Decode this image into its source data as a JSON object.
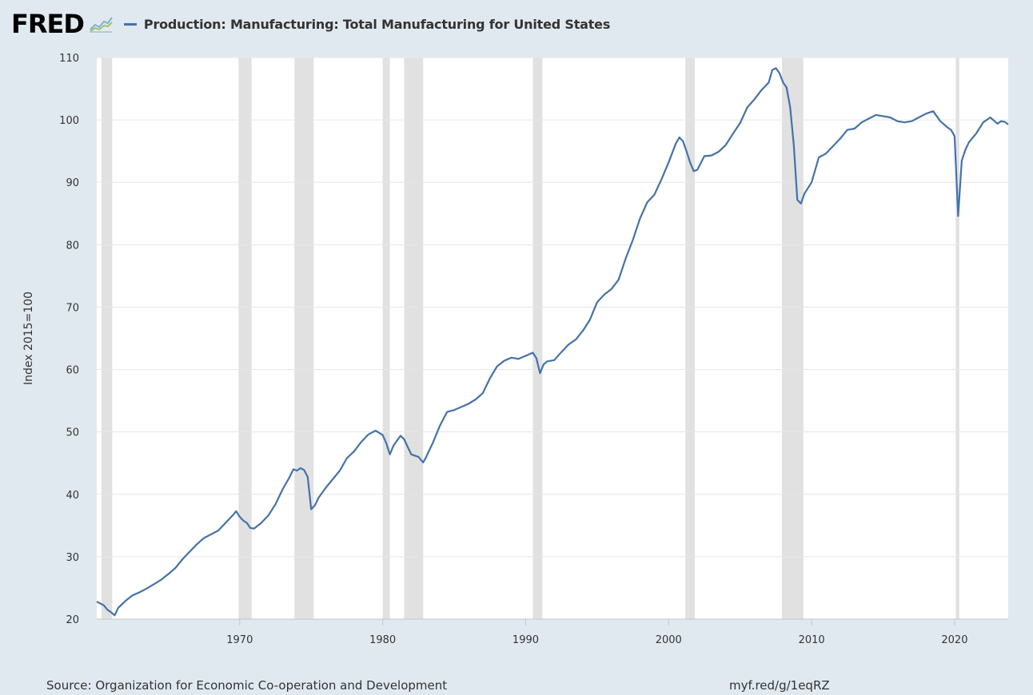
{
  "brand": {
    "logo_text": "FRED"
  },
  "colors": {
    "background": "#e1e9f0",
    "plot_bg": "#ffffff",
    "line": "#4572a7",
    "recession": "#e1e1e1",
    "grid": "#e6e6e6"
  },
  "footer": {
    "source": "Source: Organization for Economic Co-operation and Development",
    "short_url": "myf.red/g/1eqRZ"
  },
  "chart_data": {
    "type": "line",
    "title": "Production: Manufacturing: Total Manufacturing for United States",
    "xlabel": "",
    "ylabel": "Index 2015=100",
    "ylim": [
      20,
      110
    ],
    "xlim": [
      1960.0,
      2023.75
    ],
    "yticks": [
      20,
      30,
      40,
      50,
      60,
      70,
      80,
      90,
      100,
      110
    ],
    "xticks": [
      1970,
      1980,
      1990,
      2000,
      2010,
      2020
    ],
    "grid": true,
    "legend": "top",
    "recessions": [
      [
        1960.33,
        1961.08
      ],
      [
        1969.92,
        1970.83
      ],
      [
        1973.83,
        1975.17
      ],
      [
        1980.0,
        1980.5
      ],
      [
        1981.5,
        1982.83
      ],
      [
        1990.5,
        1991.17
      ],
      [
        2001.17,
        2001.83
      ],
      [
        2007.92,
        2009.42
      ],
      [
        2020.08,
        2020.33
      ]
    ],
    "series": [
      {
        "name": "Production: Manufacturing: Total Manufacturing for United States",
        "points": [
          [
            1960.0,
            22.8
          ],
          [
            1960.5,
            22.2
          ],
          [
            1960.75,
            21.5
          ],
          [
            1961.0,
            21.1
          ],
          [
            1961.25,
            20.6
          ],
          [
            1961.5,
            21.8
          ],
          [
            1962.0,
            22.9
          ],
          [
            1962.5,
            23.8
          ],
          [
            1963.0,
            24.3
          ],
          [
            1963.5,
            24.9
          ],
          [
            1964.0,
            25.6
          ],
          [
            1964.5,
            26.3
          ],
          [
            1965.0,
            27.2
          ],
          [
            1965.5,
            28.2
          ],
          [
            1966.0,
            29.6
          ],
          [
            1966.5,
            30.8
          ],
          [
            1967.0,
            32.0
          ],
          [
            1967.5,
            33.0
          ],
          [
            1968.0,
            33.6
          ],
          [
            1968.5,
            34.2
          ],
          [
            1969.0,
            35.4
          ],
          [
            1969.5,
            36.6
          ],
          [
            1969.75,
            37.3
          ],
          [
            1970.0,
            36.4
          ],
          [
            1970.25,
            35.8
          ],
          [
            1970.5,
            35.4
          ],
          [
            1970.75,
            34.6
          ],
          [
            1971.0,
            34.5
          ],
          [
            1971.5,
            35.4
          ],
          [
            1972.0,
            36.6
          ],
          [
            1972.5,
            38.4
          ],
          [
            1973.0,
            40.8
          ],
          [
            1973.5,
            42.8
          ],
          [
            1973.75,
            44.0
          ],
          [
            1974.0,
            43.8
          ],
          [
            1974.25,
            44.2
          ],
          [
            1974.5,
            43.9
          ],
          [
            1974.75,
            42.8
          ],
          [
            1975.0,
            37.6
          ],
          [
            1975.25,
            38.2
          ],
          [
            1975.5,
            39.4
          ],
          [
            1976.0,
            41.0
          ],
          [
            1976.5,
            42.4
          ],
          [
            1977.0,
            43.8
          ],
          [
            1977.5,
            45.8
          ],
          [
            1978.0,
            46.9
          ],
          [
            1978.5,
            48.4
          ],
          [
            1979.0,
            49.6
          ],
          [
            1979.5,
            50.2
          ],
          [
            1980.0,
            49.5
          ],
          [
            1980.25,
            48.2
          ],
          [
            1980.5,
            46.4
          ],
          [
            1980.75,
            47.8
          ],
          [
            1981.0,
            48.6
          ],
          [
            1981.25,
            49.4
          ],
          [
            1981.5,
            48.8
          ],
          [
            1981.75,
            47.6
          ],
          [
            1982.0,
            46.4
          ],
          [
            1982.5,
            46.0
          ],
          [
            1982.83,
            45.1
          ],
          [
            1983.0,
            45.8
          ],
          [
            1983.5,
            48.2
          ],
          [
            1984.0,
            51.0
          ],
          [
            1984.5,
            53.2
          ],
          [
            1985.0,
            53.5
          ],
          [
            1985.5,
            54.0
          ],
          [
            1986.0,
            54.5
          ],
          [
            1986.5,
            55.2
          ],
          [
            1987.0,
            56.2
          ],
          [
            1987.5,
            58.6
          ],
          [
            1988.0,
            60.5
          ],
          [
            1988.5,
            61.4
          ],
          [
            1989.0,
            61.9
          ],
          [
            1989.5,
            61.7
          ],
          [
            1990.0,
            62.2
          ],
          [
            1990.5,
            62.7
          ],
          [
            1990.75,
            61.8
          ],
          [
            1991.0,
            59.4
          ],
          [
            1991.25,
            60.8
          ],
          [
            1991.5,
            61.3
          ],
          [
            1992.0,
            61.5
          ],
          [
            1992.5,
            62.8
          ],
          [
            1993.0,
            64.0
          ],
          [
            1993.5,
            64.8
          ],
          [
            1994.0,
            66.2
          ],
          [
            1994.5,
            68.0
          ],
          [
            1995.0,
            70.8
          ],
          [
            1995.5,
            72.0
          ],
          [
            1996.0,
            72.9
          ],
          [
            1996.5,
            74.4
          ],
          [
            1997.0,
            77.8
          ],
          [
            1997.5,
            80.8
          ],
          [
            1998.0,
            84.2
          ],
          [
            1998.5,
            86.8
          ],
          [
            1999.0,
            88.0
          ],
          [
            1999.5,
            90.5
          ],
          [
            2000.0,
            93.2
          ],
          [
            2000.5,
            96.2
          ],
          [
            2000.75,
            97.2
          ],
          [
            2001.0,
            96.6
          ],
          [
            2001.25,
            95.0
          ],
          [
            2001.5,
            93.2
          ],
          [
            2001.75,
            91.8
          ],
          [
            2002.0,
            92.0
          ],
          [
            2002.5,
            94.2
          ],
          [
            2003.0,
            94.3
          ],
          [
            2003.5,
            94.9
          ],
          [
            2004.0,
            96.0
          ],
          [
            2004.5,
            97.8
          ],
          [
            2005.0,
            99.5
          ],
          [
            2005.5,
            102.0
          ],
          [
            2006.0,
            103.3
          ],
          [
            2006.5,
            104.8
          ],
          [
            2007.0,
            106.0
          ],
          [
            2007.25,
            108.0
          ],
          [
            2007.5,
            108.3
          ],
          [
            2007.75,
            107.5
          ],
          [
            2008.0,
            106.0
          ],
          [
            2008.25,
            105.2
          ],
          [
            2008.5,
            102.0
          ],
          [
            2008.75,
            96.0
          ],
          [
            2009.0,
            87.2
          ],
          [
            2009.25,
            86.6
          ],
          [
            2009.5,
            88.2
          ],
          [
            2010.0,
            90.0
          ],
          [
            2010.5,
            94.0
          ],
          [
            2011.0,
            94.6
          ],
          [
            2011.5,
            95.8
          ],
          [
            2012.0,
            97.0
          ],
          [
            2012.5,
            98.4
          ],
          [
            2013.0,
            98.6
          ],
          [
            2013.5,
            99.6
          ],
          [
            2014.0,
            100.2
          ],
          [
            2014.5,
            100.8
          ],
          [
            2015.0,
            100.6
          ],
          [
            2015.5,
            100.4
          ],
          [
            2016.0,
            99.8
          ],
          [
            2016.5,
            99.6
          ],
          [
            2017.0,
            99.8
          ],
          [
            2017.5,
            100.4
          ],
          [
            2018.0,
            101.0
          ],
          [
            2018.5,
            101.4
          ],
          [
            2019.0,
            99.8
          ],
          [
            2019.5,
            98.8
          ],
          [
            2019.75,
            98.4
          ],
          [
            2020.0,
            97.4
          ],
          [
            2020.25,
            84.6
          ],
          [
            2020.5,
            93.5
          ],
          [
            2020.75,
            95.2
          ],
          [
            2021.0,
            96.4
          ],
          [
            2021.5,
            97.8
          ],
          [
            2022.0,
            99.6
          ],
          [
            2022.5,
            100.4
          ],
          [
            2023.0,
            99.4
          ],
          [
            2023.25,
            99.8
          ],
          [
            2023.5,
            99.7
          ],
          [
            2023.75,
            99.3
          ]
        ]
      }
    ]
  }
}
